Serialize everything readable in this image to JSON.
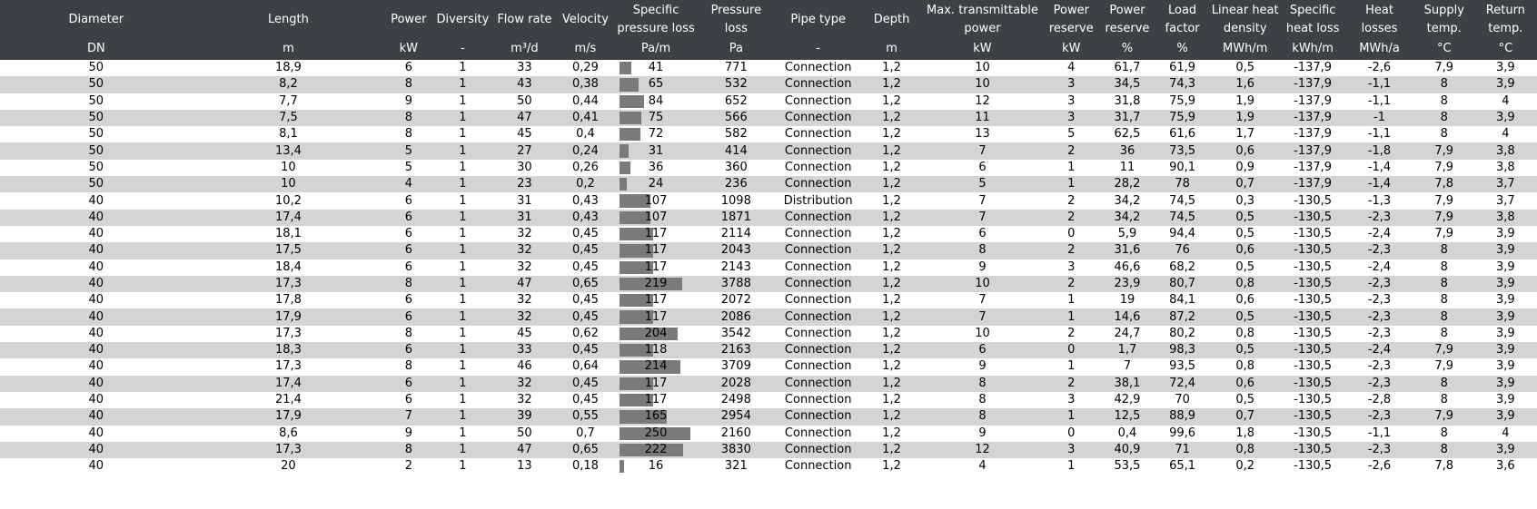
{
  "header": {
    "titles": [
      "Diameter",
      "Length",
      "Power",
      "Diversity",
      "Flow rate",
      "Velocity",
      "Specific pressure loss",
      "Pressure loss",
      "Pipe type",
      "Depth",
      "Max. transmittable power",
      "Power reserve",
      "Power reserve",
      "Load factor",
      "Linear heat density",
      "Specific heat loss",
      "Heat losses",
      "Supply temp.",
      "Return temp."
    ],
    "units": [
      "DN",
      "m",
      "kW",
      "-",
      "m³/d",
      "m/s",
      "Pa/m",
      "Pa",
      "-",
      "m",
      "kW",
      "kW",
      "%",
      "%",
      "MWh/m",
      "kWh/m",
      "MWh/a",
      "°C",
      "°C"
    ]
  },
  "bar_max": 250,
  "rows": [
    [
      "50",
      "18,9",
      "6",
      "1",
      "33",
      "0,29",
      "41",
      "771",
      "Connection",
      "1,2",
      "10",
      "4",
      "61,7",
      "61,9",
      "0,5",
      "-137,9",
      "-2,6",
      "7,9",
      "3,9"
    ],
    [
      "50",
      "8,2",
      "8",
      "1",
      "43",
      "0,38",
      "65",
      "532",
      "Connection",
      "1,2",
      "10",
      "3",
      "34,5",
      "74,3",
      "1,6",
      "-137,9",
      "-1,1",
      "8",
      "3,9"
    ],
    [
      "50",
      "7,7",
      "9",
      "1",
      "50",
      "0,44",
      "84",
      "652",
      "Connection",
      "1,2",
      "12",
      "3",
      "31,8",
      "75,9",
      "1,9",
      "-137,9",
      "-1,1",
      "8",
      "4"
    ],
    [
      "50",
      "7,5",
      "8",
      "1",
      "47",
      "0,41",
      "75",
      "566",
      "Connection",
      "1,2",
      "11",
      "3",
      "31,7",
      "75,9",
      "1,9",
      "-137,9",
      "-1",
      "8",
      "3,9"
    ],
    [
      "50",
      "8,1",
      "8",
      "1",
      "45",
      "0,4",
      "72",
      "582",
      "Connection",
      "1,2",
      "13",
      "5",
      "62,5",
      "61,6",
      "1,7",
      "-137,9",
      "-1,1",
      "8",
      "4"
    ],
    [
      "50",
      "13,4",
      "5",
      "1",
      "27",
      "0,24",
      "31",
      "414",
      "Connection",
      "1,2",
      "7",
      "2",
      "36",
      "73,5",
      "0,6",
      "-137,9",
      "-1,8",
      "7,9",
      "3,8"
    ],
    [
      "50",
      "10",
      "5",
      "1",
      "30",
      "0,26",
      "36",
      "360",
      "Connection",
      "1,2",
      "6",
      "1",
      "11",
      "90,1",
      "0,9",
      "-137,9",
      "-1,4",
      "7,9",
      "3,8"
    ],
    [
      "50",
      "10",
      "4",
      "1",
      "23",
      "0,2",
      "24",
      "236",
      "Connection",
      "1,2",
      "5",
      "1",
      "28,2",
      "78",
      "0,7",
      "-137,9",
      "-1,4",
      "7,8",
      "3,7"
    ],
    [
      "40",
      "10,2",
      "6",
      "1",
      "31",
      "0,43",
      "107",
      "1098",
      "Distribution",
      "1,2",
      "7",
      "2",
      "34,2",
      "74,5",
      "0,3",
      "-130,5",
      "-1,3",
      "7,9",
      "3,7"
    ],
    [
      "40",
      "17,4",
      "6",
      "1",
      "31",
      "0,43",
      "107",
      "1871",
      "Connection",
      "1,2",
      "7",
      "2",
      "34,2",
      "74,5",
      "0,5",
      "-130,5",
      "-2,3",
      "7,9",
      "3,8"
    ],
    [
      "40",
      "18,1",
      "6",
      "1",
      "32",
      "0,45",
      "117",
      "2114",
      "Connection",
      "1,2",
      "6",
      "0",
      "5,9",
      "94,4",
      "0,5",
      "-130,5",
      "-2,4",
      "7,9",
      "3,9"
    ],
    [
      "40",
      "17,5",
      "6",
      "1",
      "32",
      "0,45",
      "117",
      "2043",
      "Connection",
      "1,2",
      "8",
      "2",
      "31,6",
      "76",
      "0,6",
      "-130,5",
      "-2,3",
      "8",
      "3,9"
    ],
    [
      "40",
      "18,4",
      "6",
      "1",
      "32",
      "0,45",
      "117",
      "2143",
      "Connection",
      "1,2",
      "9",
      "3",
      "46,6",
      "68,2",
      "0,5",
      "-130,5",
      "-2,4",
      "8",
      "3,9"
    ],
    [
      "40",
      "17,3",
      "8",
      "1",
      "47",
      "0,65",
      "219",
      "3788",
      "Connection",
      "1,2",
      "10",
      "2",
      "23,9",
      "80,7",
      "0,8",
      "-130,5",
      "-2,3",
      "8",
      "3,9"
    ],
    [
      "40",
      "17,8",
      "6",
      "1",
      "32",
      "0,45",
      "117",
      "2072",
      "Connection",
      "1,2",
      "7",
      "1",
      "19",
      "84,1",
      "0,6",
      "-130,5",
      "-2,3",
      "8",
      "3,9"
    ],
    [
      "40",
      "17,9",
      "6",
      "1",
      "32",
      "0,45",
      "117",
      "2086",
      "Connection",
      "1,2",
      "7",
      "1",
      "14,6",
      "87,2",
      "0,5",
      "-130,5",
      "-2,3",
      "8",
      "3,9"
    ],
    [
      "40",
      "17,3",
      "8",
      "1",
      "45",
      "0,62",
      "204",
      "3542",
      "Connection",
      "1,2",
      "10",
      "2",
      "24,7",
      "80,2",
      "0,8",
      "-130,5",
      "-2,3",
      "8",
      "3,9"
    ],
    [
      "40",
      "18,3",
      "6",
      "1",
      "33",
      "0,45",
      "118",
      "2163",
      "Connection",
      "1,2",
      "6",
      "0",
      "1,7",
      "98,3",
      "0,5",
      "-130,5",
      "-2,4",
      "7,9",
      "3,9"
    ],
    [
      "40",
      "17,3",
      "8",
      "1",
      "46",
      "0,64",
      "214",
      "3709",
      "Connection",
      "1,2",
      "9",
      "1",
      "7",
      "93,5",
      "0,8",
      "-130,5",
      "-2,3",
      "7,9",
      "3,9"
    ],
    [
      "40",
      "17,4",
      "6",
      "1",
      "32",
      "0,45",
      "117",
      "2028",
      "Connection",
      "1,2",
      "8",
      "2",
      "38,1",
      "72,4",
      "0,6",
      "-130,5",
      "-2,3",
      "8",
      "3,9"
    ],
    [
      "40",
      "21,4",
      "6",
      "1",
      "32",
      "0,45",
      "117",
      "2498",
      "Connection",
      "1,2",
      "8",
      "3",
      "42,9",
      "70",
      "0,5",
      "-130,5",
      "-2,8",
      "8",
      "3,9"
    ],
    [
      "40",
      "17,9",
      "7",
      "1",
      "39",
      "0,55",
      "165",
      "2954",
      "Connection",
      "1,2",
      "8",
      "1",
      "12,5",
      "88,9",
      "0,7",
      "-130,5",
      "-2,3",
      "7,9",
      "3,9"
    ],
    [
      "40",
      "8,6",
      "9",
      "1",
      "50",
      "0,7",
      "250",
      "2160",
      "Connection",
      "1,2",
      "9",
      "0",
      "0,4",
      "99,6",
      "1,8",
      "-130,5",
      "-1,1",
      "8",
      "4"
    ],
    [
      "40",
      "17,3",
      "8",
      "1",
      "47",
      "0,65",
      "222",
      "3830",
      "Connection",
      "1,2",
      "12",
      "3",
      "40,9",
      "71",
      "0,8",
      "-130,5",
      "-2,3",
      "8",
      "3,9"
    ],
    [
      "40",
      "20",
      "2",
      "1",
      "13",
      "0,18",
      "16",
      "321",
      "Connection",
      "1,2",
      "4",
      "1",
      "53,5",
      "65,1",
      "0,2",
      "-130,5",
      "-2,6",
      "7,8",
      "3,6"
    ]
  ]
}
